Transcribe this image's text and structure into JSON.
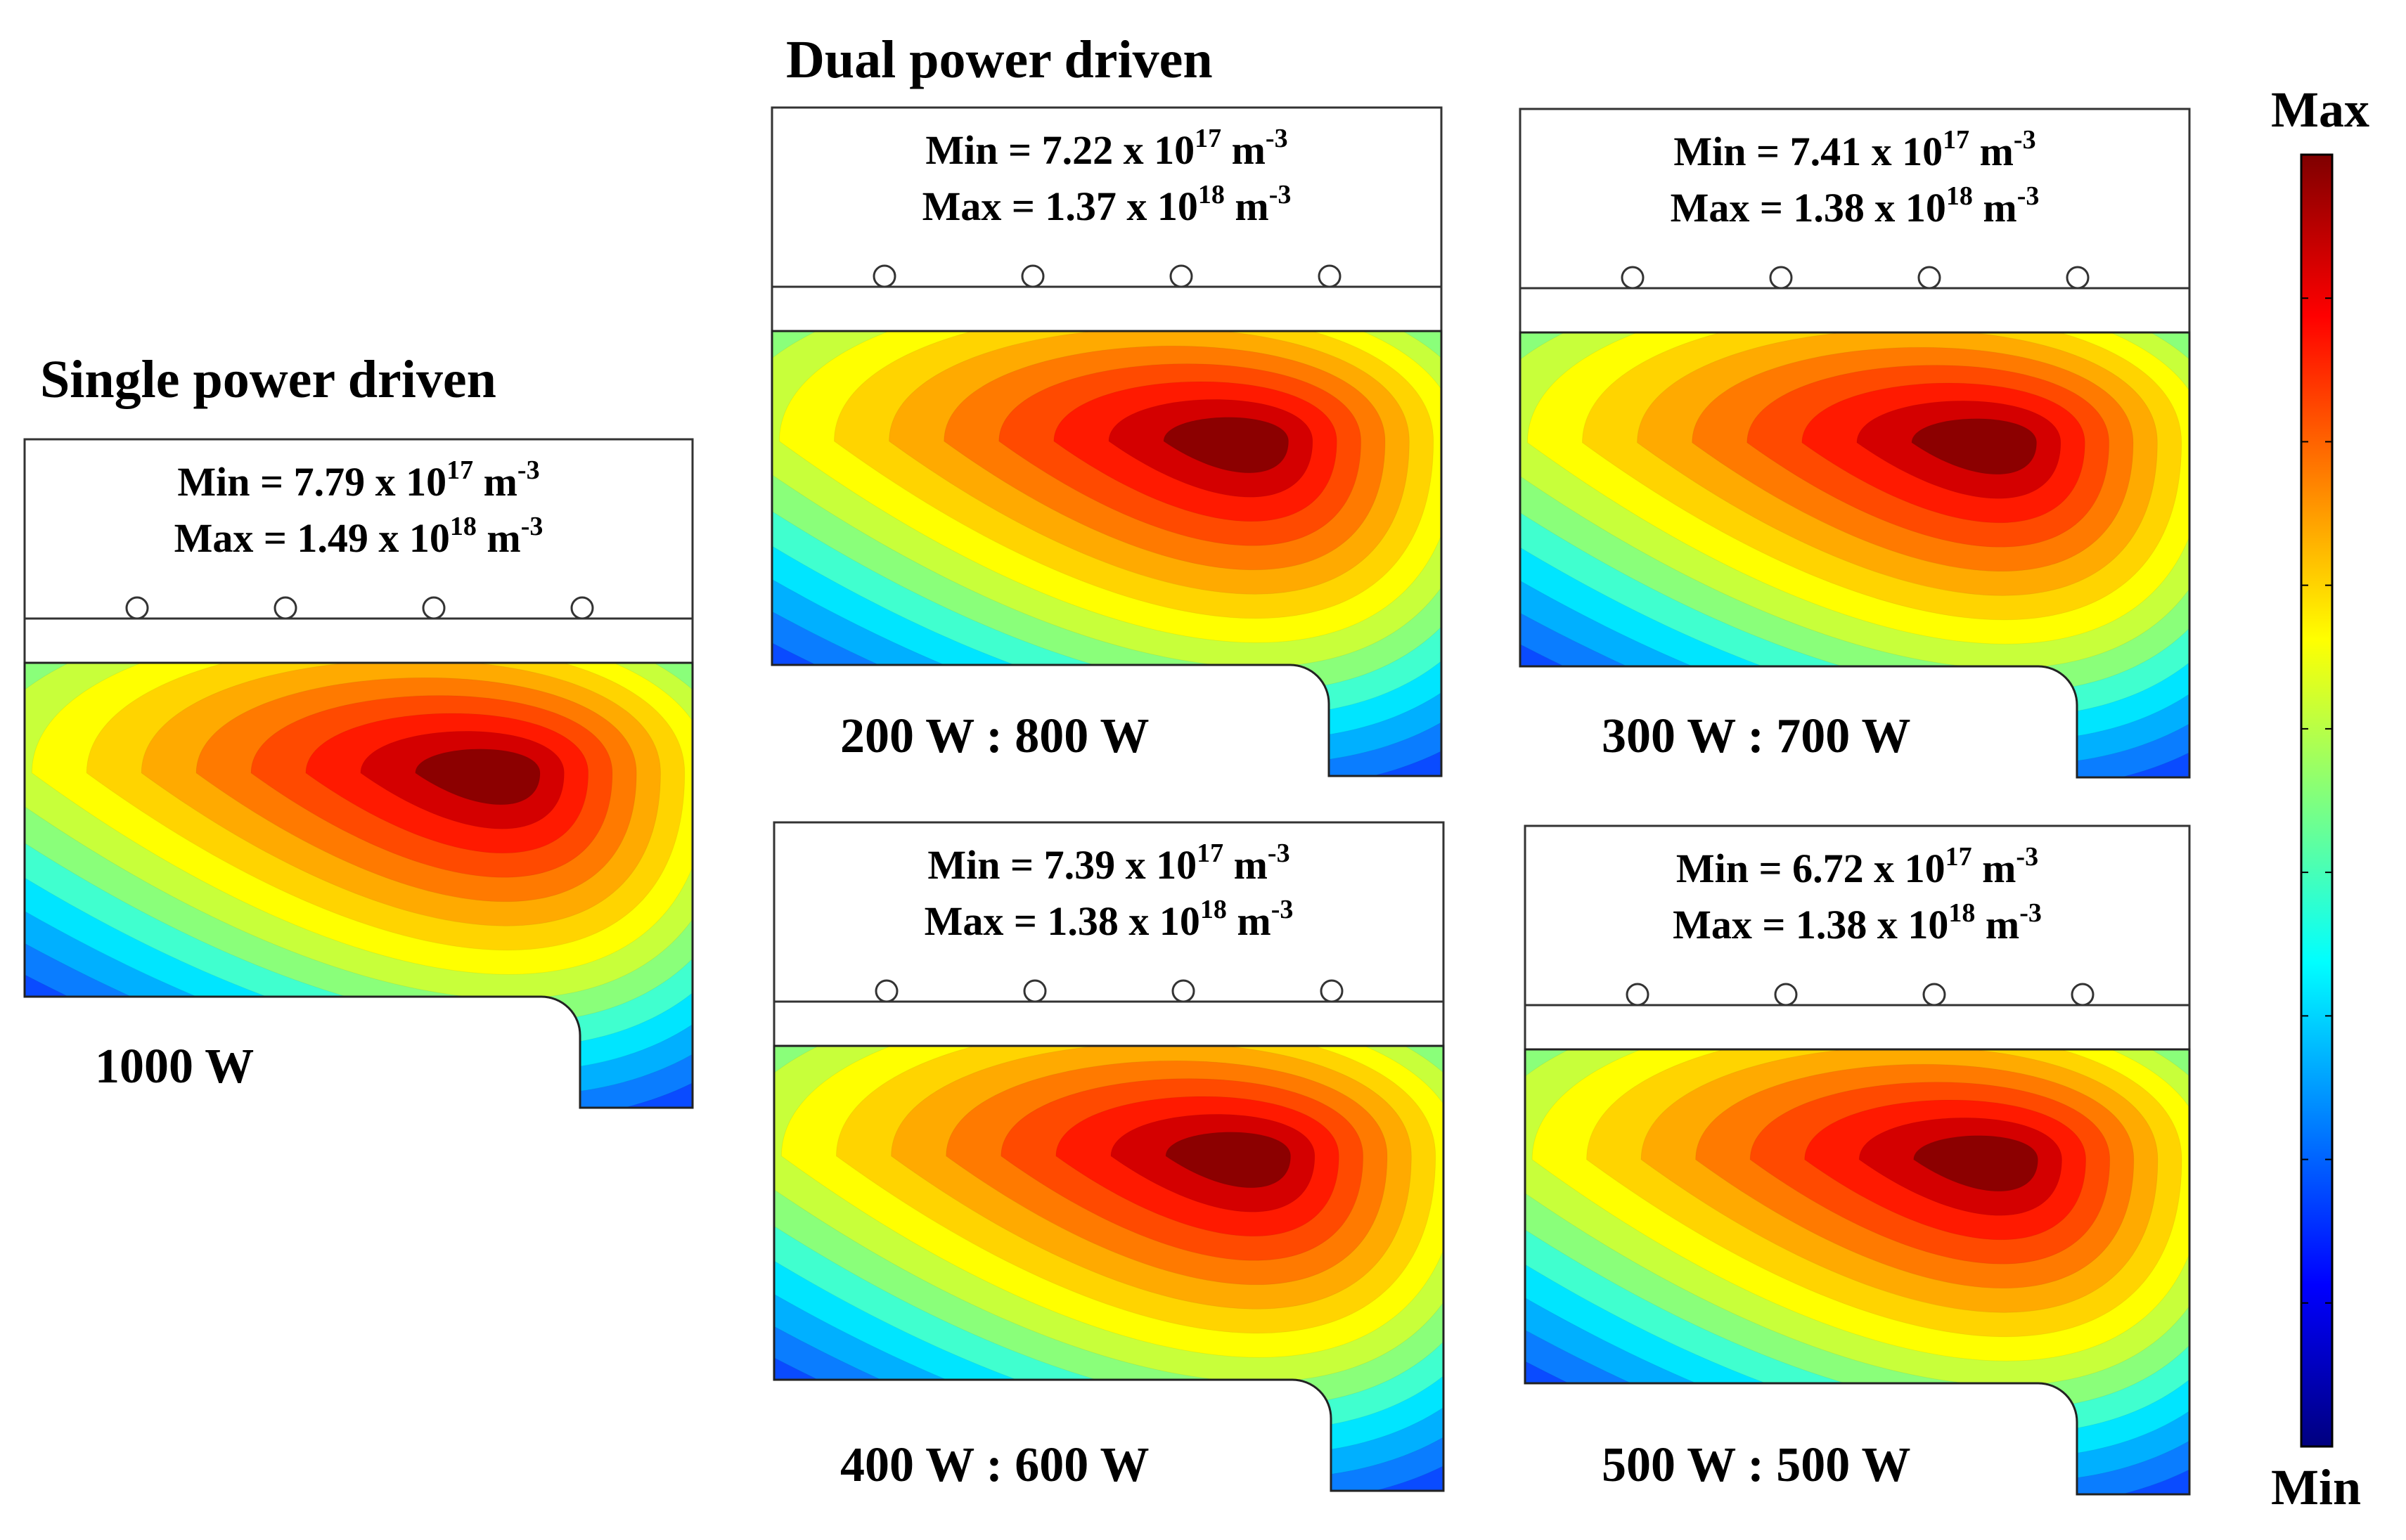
{
  "titles": {
    "single": "Single power driven",
    "dual": "Dual power driven"
  },
  "panels": [
    {
      "id": "p1000",
      "group": "single",
      "power_label": "1000 W",
      "min_text": "Min = 7.79 x 10",
      "min_exp": "17",
      "max_text": "Max = 1.49 x 10",
      "max_exp": "18",
      "unit": "m",
      "unit_exp": "-3"
    },
    {
      "id": "p200_800",
      "group": "dual",
      "power_label": "200 W : 800 W",
      "min_text": "Min = 7.22 x 10",
      "min_exp": "17",
      "max_text": "Max = 1.37 x 10",
      "max_exp": "18",
      "unit": "m",
      "unit_exp": "-3"
    },
    {
      "id": "p300_700",
      "group": "dual",
      "power_label": "300 W : 700 W",
      "min_text": "Min = 7.41 x 10",
      "min_exp": "17",
      "max_text": "Max = 1.38 x 10",
      "max_exp": "18",
      "unit": "m",
      "unit_exp": "-3"
    },
    {
      "id": "p400_600",
      "group": "dual",
      "power_label": "400 W : 600 W",
      "min_text": "Min = 7.39 x 10",
      "min_exp": "17",
      "max_text": "Max = 1.38 x 10",
      "max_exp": "18",
      "unit": "m",
      "unit_exp": "-3"
    },
    {
      "id": "p500_500",
      "group": "dual",
      "power_label": "500 W : 500 W",
      "min_text": "Min = 6.72 x 10",
      "min_exp": "17",
      "max_text": "Max = 1.38 x 10",
      "max_exp": "18",
      "unit": "m",
      "unit_exp": "-3"
    }
  ],
  "colorbar": {
    "max_label": "Max",
    "min_label": "Min",
    "colormap": "jet",
    "colors": [
      "#00007f",
      "#0000ff",
      "#007fff",
      "#00ffff",
      "#7fff7f",
      "#ffff00",
      "#ff7f00",
      "#ff0000",
      "#7f0000"
    ]
  }
}
